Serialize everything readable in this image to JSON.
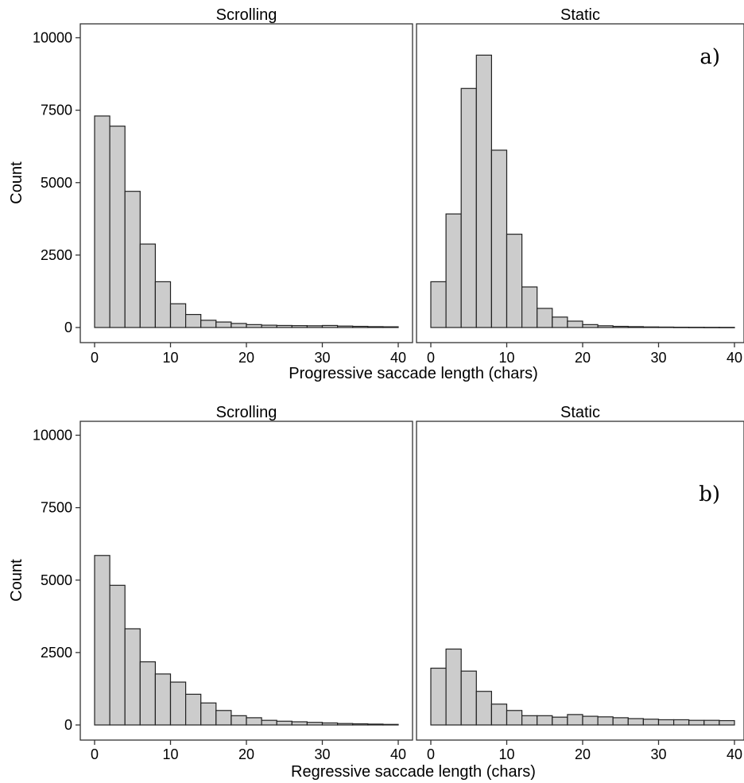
{
  "chart_data": [
    {
      "type": "bar",
      "panel_label": "a)",
      "xlabel": "Progressive saccade length (chars)",
      "ylabel": "Count",
      "xlim": [
        0,
        40
      ],
      "ylim": [
        0,
        10000
      ],
      "bin_width": 2,
      "x_ticks": [
        0,
        10,
        20,
        30,
        40
      ],
      "y_ticks": [
        0,
        2500,
        5000,
        7500,
        10000
      ],
      "x_tick_labels": [
        "0",
        "10",
        "20",
        "30",
        "40"
      ],
      "y_tick_labels": [
        "0",
        "2500",
        "5000",
        "7500",
        "10000"
      ],
      "grid": false,
      "bar_color": "#cccccc",
      "facets": [
        {
          "name": "Scrolling",
          "bin_starts": [
            0,
            2,
            4,
            6,
            8,
            10,
            12,
            14,
            16,
            18,
            20,
            22,
            24,
            26,
            28,
            30,
            32,
            34,
            36,
            38
          ],
          "values": [
            7300,
            6950,
            4700,
            2880,
            1580,
            820,
            450,
            250,
            190,
            140,
            100,
            80,
            70,
            65,
            60,
            70,
            50,
            40,
            30,
            25
          ]
        },
        {
          "name": "Static",
          "bin_starts": [
            0,
            2,
            4,
            6,
            8,
            10,
            12,
            14,
            16,
            18,
            20,
            22,
            24,
            26,
            28,
            30,
            32,
            34,
            36,
            38
          ],
          "values": [
            1580,
            3920,
            8250,
            9400,
            6120,
            3220,
            1400,
            660,
            360,
            220,
            100,
            60,
            40,
            30,
            20,
            15,
            10,
            8,
            6,
            5
          ]
        }
      ]
    },
    {
      "type": "bar",
      "panel_label": "b)",
      "xlabel": "Regressive saccade length (chars)",
      "ylabel": "Count",
      "xlim": [
        0,
        40
      ],
      "ylim": [
        0,
        10000
      ],
      "bin_width": 2,
      "x_ticks": [
        0,
        10,
        20,
        30,
        40
      ],
      "y_ticks": [
        0,
        2500,
        5000,
        7500,
        10000
      ],
      "x_tick_labels": [
        "0",
        "10",
        "20",
        "30",
        "40"
      ],
      "y_tick_labels": [
        "0",
        "2500",
        "5000",
        "7500",
        "10000"
      ],
      "grid": false,
      "bar_color": "#cccccc",
      "facets": [
        {
          "name": "Scrolling",
          "bin_starts": [
            0,
            2,
            4,
            6,
            8,
            10,
            12,
            14,
            16,
            18,
            20,
            22,
            24,
            26,
            28,
            30,
            32,
            34,
            36,
            38
          ],
          "values": [
            5850,
            4820,
            3320,
            2180,
            1760,
            1480,
            1060,
            760,
            500,
            320,
            250,
            160,
            130,
            110,
            90,
            70,
            50,
            40,
            30,
            20
          ]
        },
        {
          "name": "Static",
          "bin_starts": [
            0,
            2,
            4,
            6,
            8,
            10,
            12,
            14,
            16,
            18,
            20,
            22,
            24,
            26,
            28,
            30,
            32,
            34,
            36,
            38
          ],
          "values": [
            1960,
            2620,
            1860,
            1160,
            720,
            500,
            320,
            320,
            270,
            360,
            300,
            280,
            250,
            220,
            200,
            180,
            180,
            160,
            160,
            150
          ]
        }
      ]
    }
  ]
}
